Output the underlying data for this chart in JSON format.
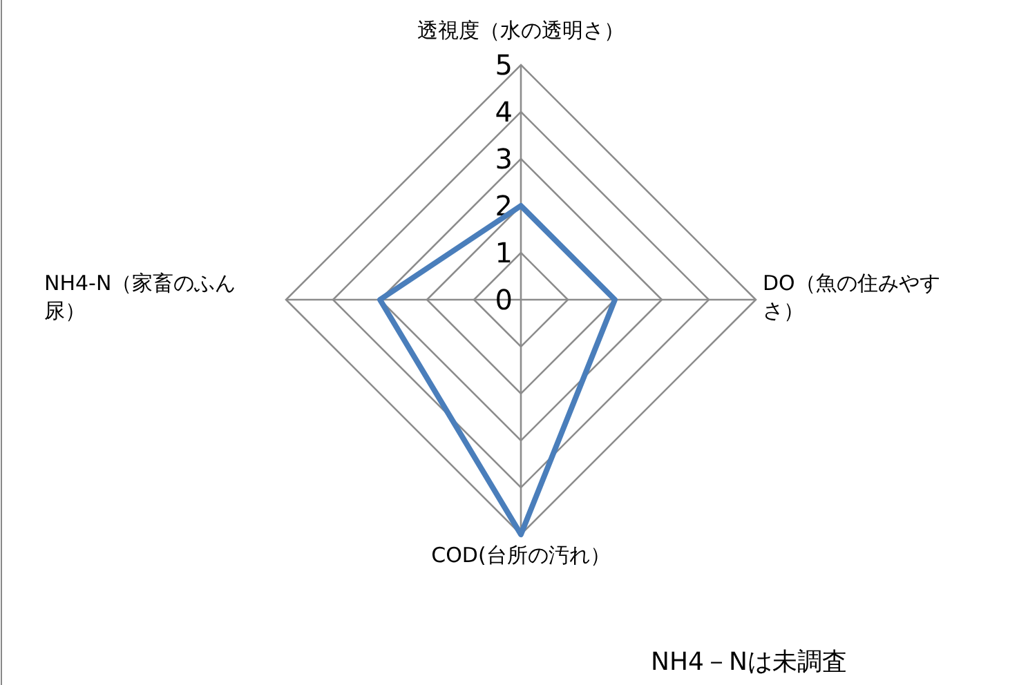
{
  "chart_data": {
    "type": "radar",
    "categories": [
      "透視度（水の透明さ）",
      "DO（魚の住みやすさ）",
      "COD(台所の汚れ）",
      "NH4-N（家畜のふん尿）"
    ],
    "series": [
      {
        "color": "#4a7ebb",
        "values": [
          2,
          2,
          5,
          3
        ]
      }
    ],
    "ylim": [
      0,
      5
    ],
    "yticks": [
      0,
      1,
      2,
      3,
      4,
      5
    ],
    "grid": true,
    "annotations": [
      "NH4－Nは未調査"
    ]
  }
}
